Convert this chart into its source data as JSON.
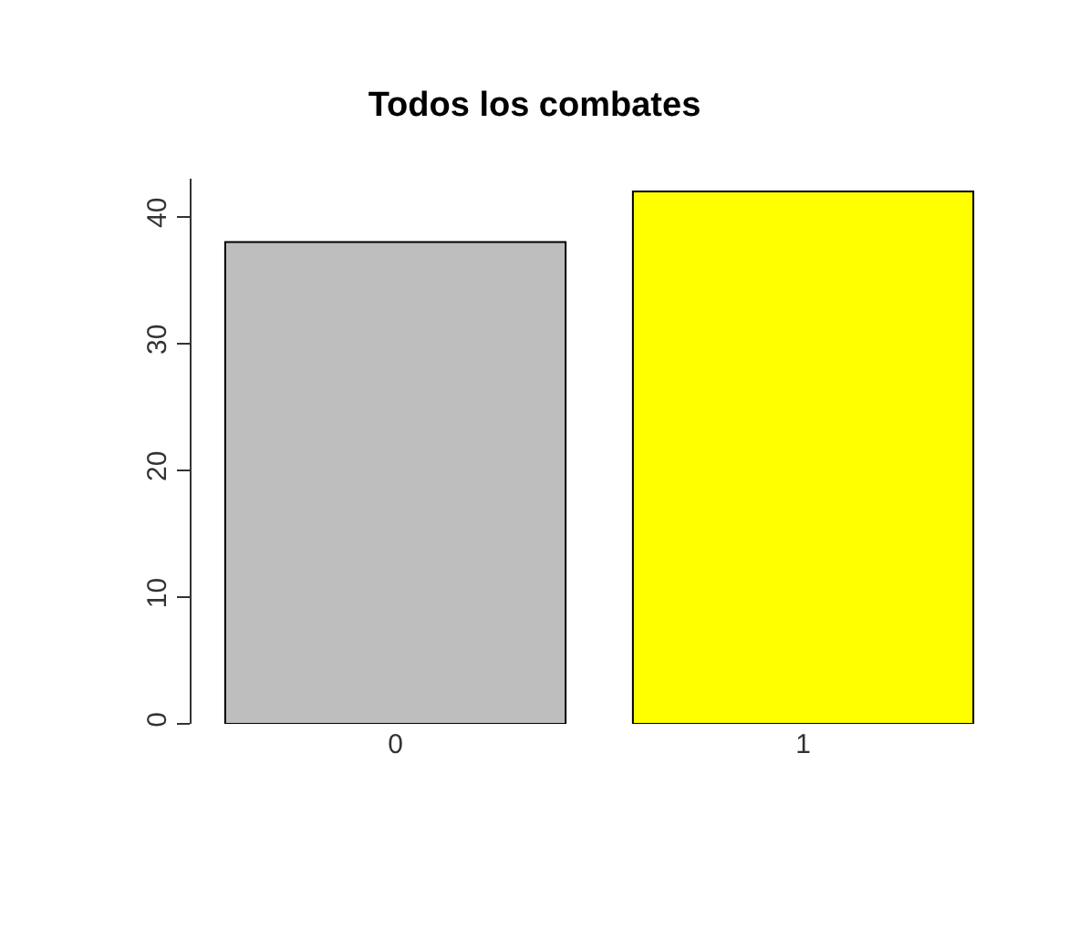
{
  "chart_data": {
    "type": "bar",
    "title": "Todos los combates",
    "categories": [
      "0",
      "1"
    ],
    "values": [
      38,
      42
    ],
    "colors": [
      "#bebebe",
      "#ffff00"
    ],
    "ylim": [
      0,
      43
    ],
    "yticks": [
      0,
      10,
      20,
      30,
      40
    ],
    "grid": false
  }
}
